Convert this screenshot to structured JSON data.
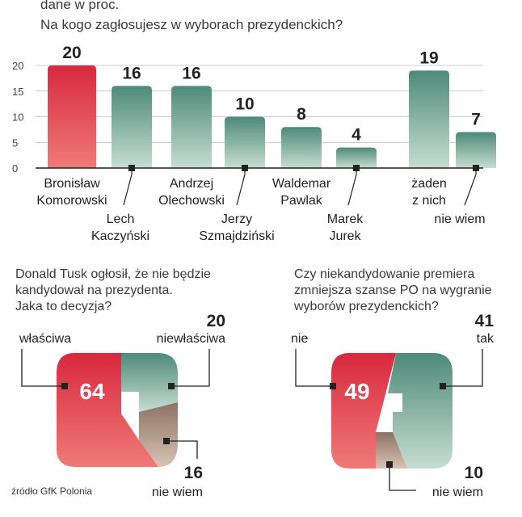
{
  "header": {
    "unit_note": "dane w proc.",
    "question": "Na kogo zagłosujesz w wyborach prezydenckich?"
  },
  "source": "źródło GfK Polonia",
  "colors": {
    "red": "#d8283e",
    "red_light": "#f07a78",
    "green": "#4e8a78",
    "green_light": "#c6ddd2",
    "brown": "#8d7262",
    "brown_light": "#d8c2b5",
    "gridline": "#7a7a7a"
  },
  "chart_data": [
    {
      "type": "bar",
      "title": "Na kogo zagłosujesz w wyborach prezydenckich?",
      "subtitle": "dane w proc.",
      "ylim": [
        0,
        20
      ],
      "yticks": [
        0,
        5,
        10,
        15,
        20
      ],
      "categories": [
        "Bronisław Komorowski",
        "Lech Kaczyński",
        "Andrzej Olechowski",
        "Jerzy Szmajdziński",
        "Waldemar Pawlak",
        "Marek Jurek",
        "żaden z nich",
        "nie wiem"
      ],
      "label_lines": [
        [
          "Bronisław",
          "Komorowski"
        ],
        [
          "Lech",
          "Kaczyński"
        ],
        [
          "Andrzej",
          "Olechowski"
        ],
        [
          "Jerzy",
          "Szmajdziński"
        ],
        [
          "Waldemar",
          "Pawlak"
        ],
        [
          "Marek",
          "Jurek"
        ],
        [
          "żaden",
          "z nich"
        ],
        [
          "nie wiem"
        ]
      ],
      "label_position": [
        "below",
        "callout",
        "below",
        "callout",
        "below",
        "callout",
        "below",
        "callout"
      ],
      "values": [
        20,
        16,
        16,
        10,
        8,
        4,
        19,
        7
      ],
      "highlight_index": 0
    },
    {
      "type": "pie",
      "title": "Donald Tusk ogłosił, że nie będzie kandydował na prezydenta. Jaka to decyzja?",
      "title_lines": [
        "Donald Tusk ogłosił, że nie będzie",
        "kandydował na prezydenta.",
        "Jaka to decyzja?"
      ],
      "slices": [
        {
          "label": "właściwa",
          "value": 64,
          "color": "red"
        },
        {
          "label": "niewłaściwa",
          "value": 20,
          "color": "green"
        },
        {
          "label": "nie wiem",
          "value": 16,
          "color": "brown"
        }
      ]
    },
    {
      "type": "pie",
      "title": "Czy niekandydowanie premiera zmniejsza szanse PO na wygranie wyborów prezydenckich?",
      "title_lines": [
        "Czy niekandydowanie premiera",
        "zmniejsza szanse PO na wygranie",
        "wyborów prezydenckich?"
      ],
      "slices": [
        {
          "label": "nie",
          "value": 49,
          "color": "red"
        },
        {
          "label": "tak",
          "value": 41,
          "color": "green"
        },
        {
          "label": "nie wiem",
          "value": 10,
          "color": "brown"
        }
      ]
    }
  ]
}
